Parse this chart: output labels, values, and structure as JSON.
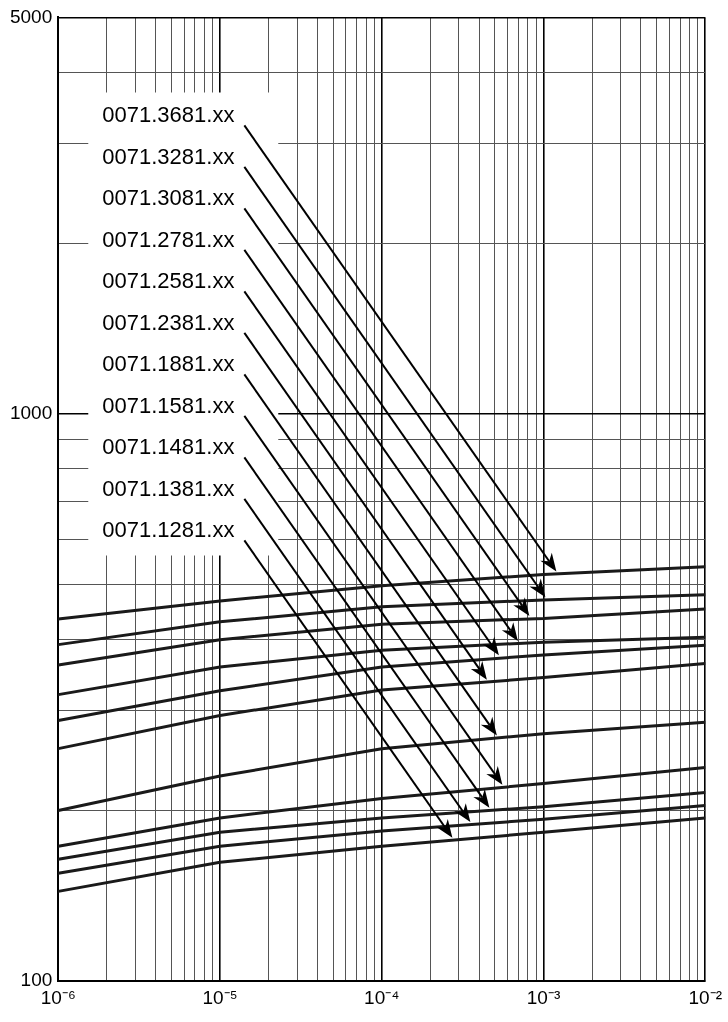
{
  "chart_data": {
    "type": "line",
    "x": [
      1e-06,
      1e-05,
      0.0001,
      0.001,
      0.01
    ],
    "series": [
      {
        "name": "0071.3681.xx",
        "color": "#1a1a1a",
        "values": [
          435,
          468,
          498,
          521,
          538
        ]
      },
      {
        "name": "0071.3281.xx",
        "color": "#1a1a1a",
        "values": [
          392,
          430,
          457,
          470,
          480
        ]
      },
      {
        "name": "0071.3081.xx",
        "color": "#1a1a1a",
        "values": [
          361,
          400,
          426,
          436,
          453
        ]
      },
      {
        "name": "0071.2781.xx",
        "color": "#1a1a1a",
        "values": [
          320,
          358,
          383,
          396,
          404
        ]
      },
      {
        "name": "0071.2581.xx",
        "color": "#1a1a1a",
        "values": [
          288,
          325,
          358,
          376,
          391
        ]
      },
      {
        "name": "0071.2381.xx",
        "color": "#1a1a1a",
        "values": [
          257,
          294,
          326,
          343,
          363
        ]
      },
      {
        "name": "0071.1881.xx",
        "color": "#1a1a1a",
        "values": [
          200,
          230,
          257,
          273,
          286
        ]
      },
      {
        "name": "0071.1581.xx",
        "color": "#1a1a1a",
        "values": [
          173,
          194,
          210,
          223,
          238
        ]
      },
      {
        "name": "0071.1481.xx",
        "color": "#1a1a1a",
        "values": [
          164,
          183,
          194,
          203,
          215
        ]
      },
      {
        "name": "0071.1381.xx",
        "color": "#1a1a1a",
        "values": [
          155,
          173,
          184,
          193,
          204
        ]
      },
      {
        "name": "0071.1281.xx",
        "color": "#1a1a1a",
        "values": [
          144,
          162,
          173,
          183,
          194
        ]
      }
    ],
    "log": "xy",
    "xlim": [
      1e-06,
      0.01
    ],
    "ylim": [
      100,
      5000
    ],
    "xticks": [
      {
        "value": 1e-06,
        "label": "10⁻⁶"
      },
      {
        "value": 2e-06,
        "label": null
      },
      {
        "value": 3e-06,
        "label": null
      },
      {
        "value": 4e-06,
        "label": null
      },
      {
        "value": 5e-06,
        "label": null
      },
      {
        "value": 6e-06,
        "label": null
      },
      {
        "value": 7e-06,
        "label": null
      },
      {
        "value": 8e-06,
        "label": null
      },
      {
        "value": 9e-06,
        "label": null
      },
      {
        "value": 1e-05,
        "label": "10⁻⁵"
      },
      {
        "value": 2e-05,
        "label": null
      },
      {
        "value": 3e-05,
        "label": null
      },
      {
        "value": 4e-05,
        "label": null
      },
      {
        "value": 5e-05,
        "label": null
      },
      {
        "value": 6e-05,
        "label": null
      },
      {
        "value": 7e-05,
        "label": null
      },
      {
        "value": 8e-05,
        "label": null
      },
      {
        "value": 9e-05,
        "label": null
      },
      {
        "value": 0.0001,
        "label": "10⁻⁴"
      },
      {
        "value": 0.0002,
        "label": null
      },
      {
        "value": 0.0003,
        "label": null
      },
      {
        "value": 0.0004,
        "label": null
      },
      {
        "value": 0.0005,
        "label": null
      },
      {
        "value": 0.0006,
        "label": null
      },
      {
        "value": 0.0007,
        "label": null
      },
      {
        "value": 0.0008,
        "label": null
      },
      {
        "value": 0.0009,
        "label": null
      },
      {
        "value": 0.001,
        "label": "10⁻³"
      },
      {
        "value": 0.002,
        "label": null
      },
      {
        "value": 0.003,
        "label": null
      },
      {
        "value": 0.004,
        "label": null
      },
      {
        "value": 0.005,
        "label": null
      },
      {
        "value": 0.006,
        "label": null
      },
      {
        "value": 0.007,
        "label": null
      },
      {
        "value": 0.008,
        "label": null
      },
      {
        "value": 0.009,
        "label": null
      },
      {
        "value": 0.01,
        "label": "10⁻²"
      }
    ],
    "yticks": [
      100,
      {
        "value": 200,
        "label": null
      },
      {
        "value": 300,
        "label": null
      },
      {
        "value": 400,
        "label": null
      },
      {
        "value": 500,
        "label": null
      },
      {
        "value": 600,
        "label": null
      },
      {
        "value": 700,
        "label": null
      },
      {
        "value": 800,
        "label": null
      },
      {
        "value": 900,
        "label": null
      },
      1000,
      {
        "value": 2000,
        "label": null
      },
      {
        "value": 3000,
        "label": null
      },
      {
        "value": 4000,
        "label": null
      },
      5000
    ],
    "grid": true,
    "legend": false,
    "marker": "none",
    "line_style": "solid"
  }
}
